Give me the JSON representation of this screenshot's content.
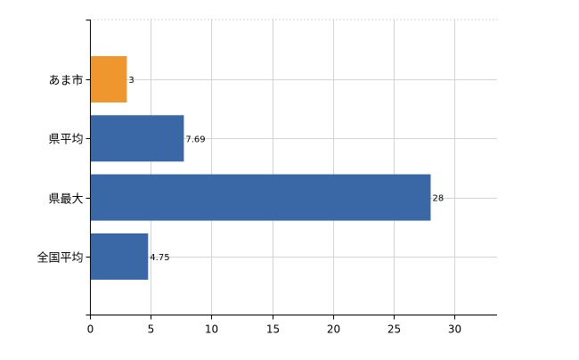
{
  "chart_data": {
    "type": "bar",
    "orientation": "horizontal",
    "categories": [
      "あま市",
      "県平均",
      "県最大",
      "全国平均"
    ],
    "values": [
      3,
      7.69,
      28,
      4.75
    ],
    "data_labels": [
      "3",
      "7.69",
      "28",
      "4.75"
    ],
    "bar_colors": [
      "#f0962e",
      "#3a68a6",
      "#3a68a6",
      "#3a68a6"
    ],
    "xlim": [
      0,
      33.5
    ],
    "x_ticks": [
      0,
      5,
      10,
      15,
      20,
      25,
      30
    ],
    "x_tick_labels": [
      "0",
      "5",
      "10",
      "15",
      "20",
      "25",
      "30"
    ],
    "grid": true,
    "legend": "none",
    "title": "",
    "xlabel": "",
    "ylabel": ""
  }
}
